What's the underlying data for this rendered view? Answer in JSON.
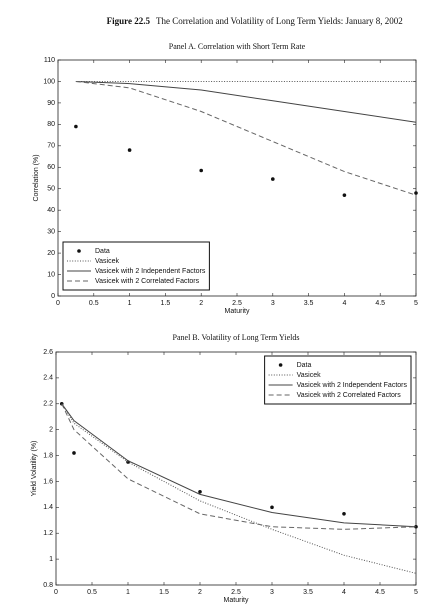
{
  "figure": {
    "label": "Figure 22.5",
    "title": "The Correlation and Volatility of Long Term Yields: January 8, 2002"
  },
  "chart_data": [
    {
      "type": "line",
      "title": "Panel A. Correlation with Short Term Rate",
      "x_label": "Maturity",
      "y_label": "Correlation (%)",
      "xlim": [
        0,
        5
      ],
      "ylim": [
        0,
        110
      ],
      "xticks": [
        0,
        0.5,
        1,
        1.5,
        2,
        2.5,
        3,
        3.5,
        4,
        4.5,
        5
      ],
      "yticks": [
        0,
        10,
        20,
        30,
        40,
        50,
        60,
        70,
        80,
        90,
        100,
        110
      ],
      "legend": "lower left",
      "series": [
        {
          "name": "Data",
          "color": "#111111",
          "style": "markers",
          "x": [
            0.25,
            1,
            2,
            3,
            4,
            5
          ],
          "values": [
            79,
            68,
            58.5,
            54.5,
            47,
            48
          ]
        },
        {
          "name": "Vasicek",
          "color": "#555555",
          "style": "dotted",
          "x": [
            0.25,
            1,
            2,
            3,
            4,
            5
          ],
          "values": [
            100,
            100,
            100,
            100,
            100,
            100
          ]
        },
        {
          "name": "Vasicek with 2 Independent Factors",
          "color": "#444444",
          "style": "solid",
          "x": [
            0.25,
            1,
            2,
            3,
            4,
            5
          ],
          "values": [
            100,
            99,
            96,
            91,
            86,
            81
          ]
        },
        {
          "name": "Vasicek with 2 Correlated Factors",
          "color": "#666666",
          "style": "dashed",
          "x": [
            0.25,
            1,
            2,
            3,
            4,
            5
          ],
          "values": [
            100,
            97,
            86,
            72,
            58,
            47
          ]
        }
      ]
    },
    {
      "type": "line",
      "title": "Panel B. Volatility of Long Term Yields",
      "x_label": "Maturity",
      "y_label": "Yield Volatility (%)",
      "xlim": [
        0,
        5
      ],
      "ylim": [
        0.8,
        2.6
      ],
      "xticks": [
        0,
        0.5,
        1,
        1.5,
        2,
        2.5,
        3,
        3.5,
        4,
        4.5,
        5
      ],
      "yticks": [
        0.8,
        1,
        1.2,
        1.4,
        1.6,
        1.8,
        2,
        2.2,
        2.4,
        2.6
      ],
      "legend": "upper right",
      "series": [
        {
          "name": "Data",
          "color": "#111111",
          "style": "markers",
          "x": [
            0.08,
            0.25,
            1,
            2,
            3,
            4,
            5
          ],
          "values": [
            2.2,
            1.82,
            1.75,
            1.52,
            1.4,
            1.35,
            1.25
          ]
        },
        {
          "name": "Vasicek",
          "color": "#555555",
          "style": "dotted",
          "x": [
            0.08,
            0.25,
            1,
            2,
            3,
            4,
            5
          ],
          "values": [
            2.2,
            2.05,
            1.75,
            1.45,
            1.23,
            1.03,
            0.89
          ]
        },
        {
          "name": "Vasicek with 2 Independent Factors",
          "color": "#444444",
          "style": "solid",
          "x": [
            0.08,
            0.25,
            1,
            2,
            3,
            4,
            5
          ],
          "values": [
            2.2,
            2.07,
            1.76,
            1.5,
            1.36,
            1.28,
            1.25
          ]
        },
        {
          "name": "Vasicek with 2 Correlated Factors",
          "color": "#666666",
          "style": "dashed",
          "x": [
            0.08,
            0.25,
            1,
            2,
            3,
            4,
            5
          ],
          "values": [
            2.2,
            2.0,
            1.62,
            1.35,
            1.25,
            1.23,
            1.25
          ]
        }
      ]
    }
  ]
}
